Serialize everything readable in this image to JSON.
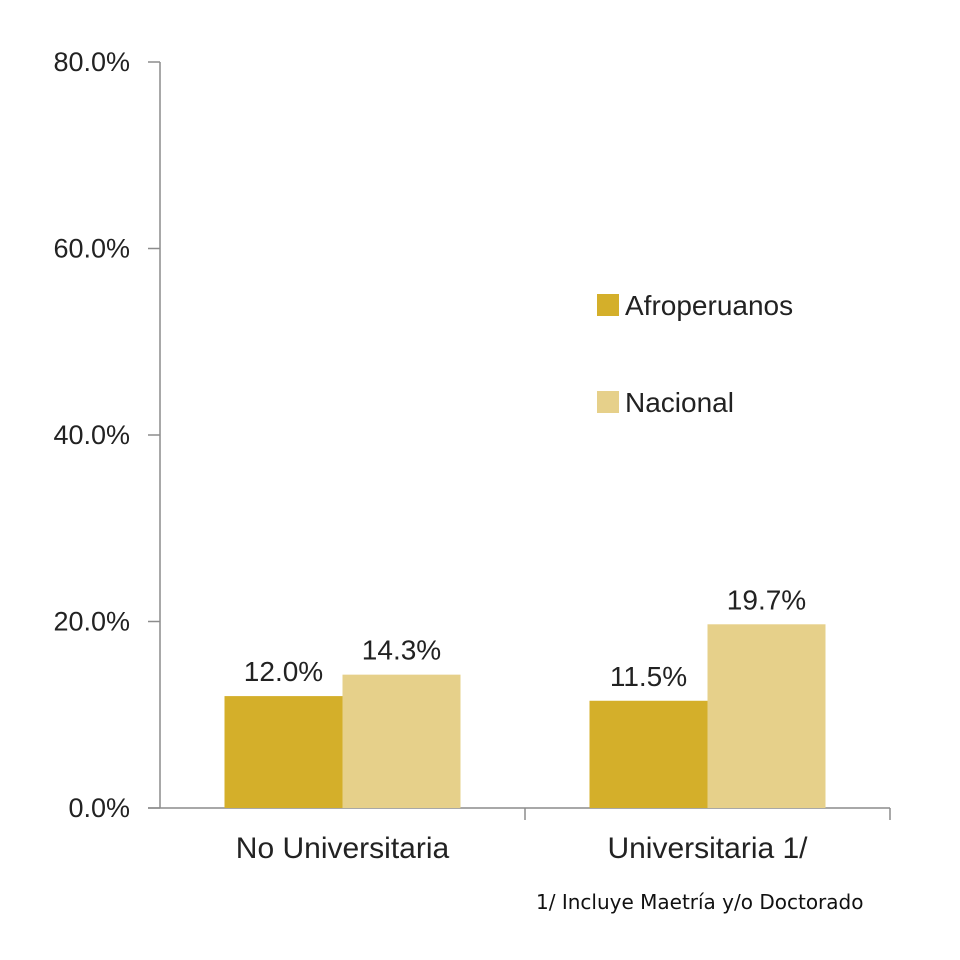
{
  "chart_data": {
    "type": "bar",
    "categories": [
      "No Universitaria",
      "Universitaria 1/"
    ],
    "series": [
      {
        "name": "Afroperuanos",
        "values": [
          12.0,
          11.5
        ],
        "labels": [
          "12.0%",
          "11.5%"
        ],
        "color": "#d4af2a"
      },
      {
        "name": "Nacional",
        "values": [
          14.3,
          19.7
        ],
        "labels": [
          "14.3%",
          "19.7%"
        ],
        "color": "#e6d08a"
      }
    ],
    "ylim": [
      0,
      80
    ],
    "yticks": [
      0,
      20,
      40,
      60,
      80
    ],
    "ytick_labels": [
      "0.0%",
      "20.0%",
      "40.0%",
      "60.0%",
      "80.0%"
    ],
    "title": "",
    "xlabel": "",
    "ylabel": "",
    "grid": false,
    "legend_position": "right-middle"
  },
  "footnote": "1/ Incluye Maetría y/o Doctorado"
}
